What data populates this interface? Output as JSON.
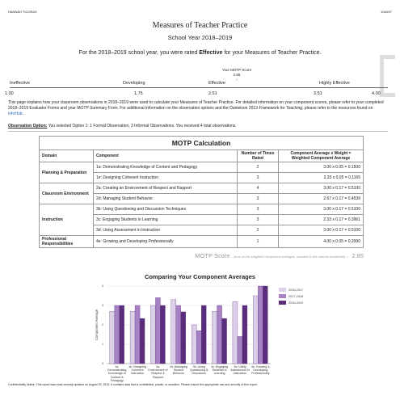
{
  "header": {
    "name": "HANNAH TICORAS",
    "id": "10A497"
  },
  "title": "Measures of Teacher Practice",
  "subtitle": "School Year 2018–2019",
  "rating_sentence": [
    "For the 2018–2019 school year, you were rated ",
    "Effective",
    " for your Measures of Teacher Practice."
  ],
  "score": {
    "label": "Your MOTP Score",
    "value": "2.85"
  },
  "scale": {
    "levels": [
      "Ineffective",
      "Developing",
      "Effective",
      "Highly Effective"
    ],
    "points": [
      "1.00",
      "1.75",
      "2.51",
      "3.51",
      "4.00"
    ]
  },
  "explanation": [
    "This page explains how your classroom observations in 2018–2019 were used to calculate your Measures of Teacher Practice. For detailed information on your component scores, please refer to your completed 2018–2019 Evaluator Forms and your MOTP Summary Form. For additional information on the observation options and the Danielson 2013 ",
    "Framework for Teaching",
    ", please refer to the resources found on ",
    "InfoHub",
    "."
  ],
  "observation": {
    "label": "Observation Option:",
    "text": " You selected Option 1: 1 Formal Observation, 3 Informal Observations. You received 4 total observations."
  },
  "table": {
    "title": "MOTP Calculation",
    "headers": [
      "Domain",
      "Component",
      "Number of Times Rated",
      "Component Average x Weight = Weighted Component Average"
    ],
    "domains": [
      {
        "name": "Planning & Preparation",
        "components": [
          {
            "name": "1a: Demonstrating Knowledge of Content and Pedagogy",
            "times": "2",
            "calc": "3.00 x 0.05 = 0.1500"
          },
          {
            "name": "1e: Designing Coherent Instruction",
            "times": "3",
            "calc": "2.33 x 0.05 = 0.1165"
          }
        ]
      },
      {
        "name": "Classroom Environment",
        "components": [
          {
            "name": "2a: Creating an Environment of Respect and Rapport",
            "times": "4",
            "calc": "3.00 x 0.17 = 0.5100"
          },
          {
            "name": "2d: Managing Student Behavior",
            "times": "3",
            "calc": "2.67 x 0.17 = 0.4539"
          }
        ]
      },
      {
        "name": "Instruction",
        "components": [
          {
            "name": "3b: Using Questioning and Discussion Techniques",
            "times": "3",
            "calc": "3.00 x 0.17 = 0.5100"
          },
          {
            "name": "3c: Engaging Students in Learning",
            "times": "3",
            "calc": "2.33 x 0.17 = 0.3961"
          },
          {
            "name": "3d: Using Assessment in Instruction",
            "times": "2",
            "calc": "3.00 x 0.17 = 0.5100"
          }
        ]
      },
      {
        "name": "Professional Responsibilities",
        "components": [
          {
            "name": "4e: Growing and Developing Professionally",
            "times": "1",
            "calc": "4.00 x 0.05 = 0.2000"
          }
        ]
      }
    ],
    "total": {
      "label": "MOTP Score",
      "note": "(sum of the weighted component averages, rounded to the nearest hundredth) =",
      "value": "2.85"
    }
  },
  "chart_data": {
    "type": "bar",
    "title": "Comparing Your Component Averages",
    "y_label": "Component Average",
    "categories": [
      "1a: Demonstrating Knowledge of Content & Pedagogy",
      "1e: Designing Coherent Instruction",
      "2a: Environment of Respect & Rapport",
      "2d: Managing Student Behavior",
      "3b: Using Questioning & Discussion",
      "3c: Engaging Students in Learning",
      "3d: Using Assessment in Instruction",
      "4e: Growing & Developing Professionally"
    ],
    "series": [
      {
        "name": "2016-2017",
        "color": "#dcd0e8",
        "values": [
          2.7,
          2.7,
          3,
          3.3,
          2,
          2.7,
          3.2,
          3.5
        ]
      },
      {
        "name": "2017-2018",
        "color": "#a682c4",
        "values": [
          3,
          3,
          3.4,
          3,
          1.7,
          3,
          1.4,
          4
        ]
      },
      {
        "name": "2018-2019",
        "color": "#5a2d7c",
        "values": [
          3,
          2.33,
          3,
          2.67,
          3,
          2.33,
          3,
          4
        ]
      }
    ],
    "ylim": [
      0,
      4
    ],
    "yticks": [
      0,
      1,
      2,
      3,
      4
    ],
    "grid": true,
    "legend": "right"
  },
  "footer": "Confidentiality Notice: This report was most recently updated on August 29, 2019. It contains data that is confidential, private, or sensitive. Please ensure the appropriate use and security of this report."
}
